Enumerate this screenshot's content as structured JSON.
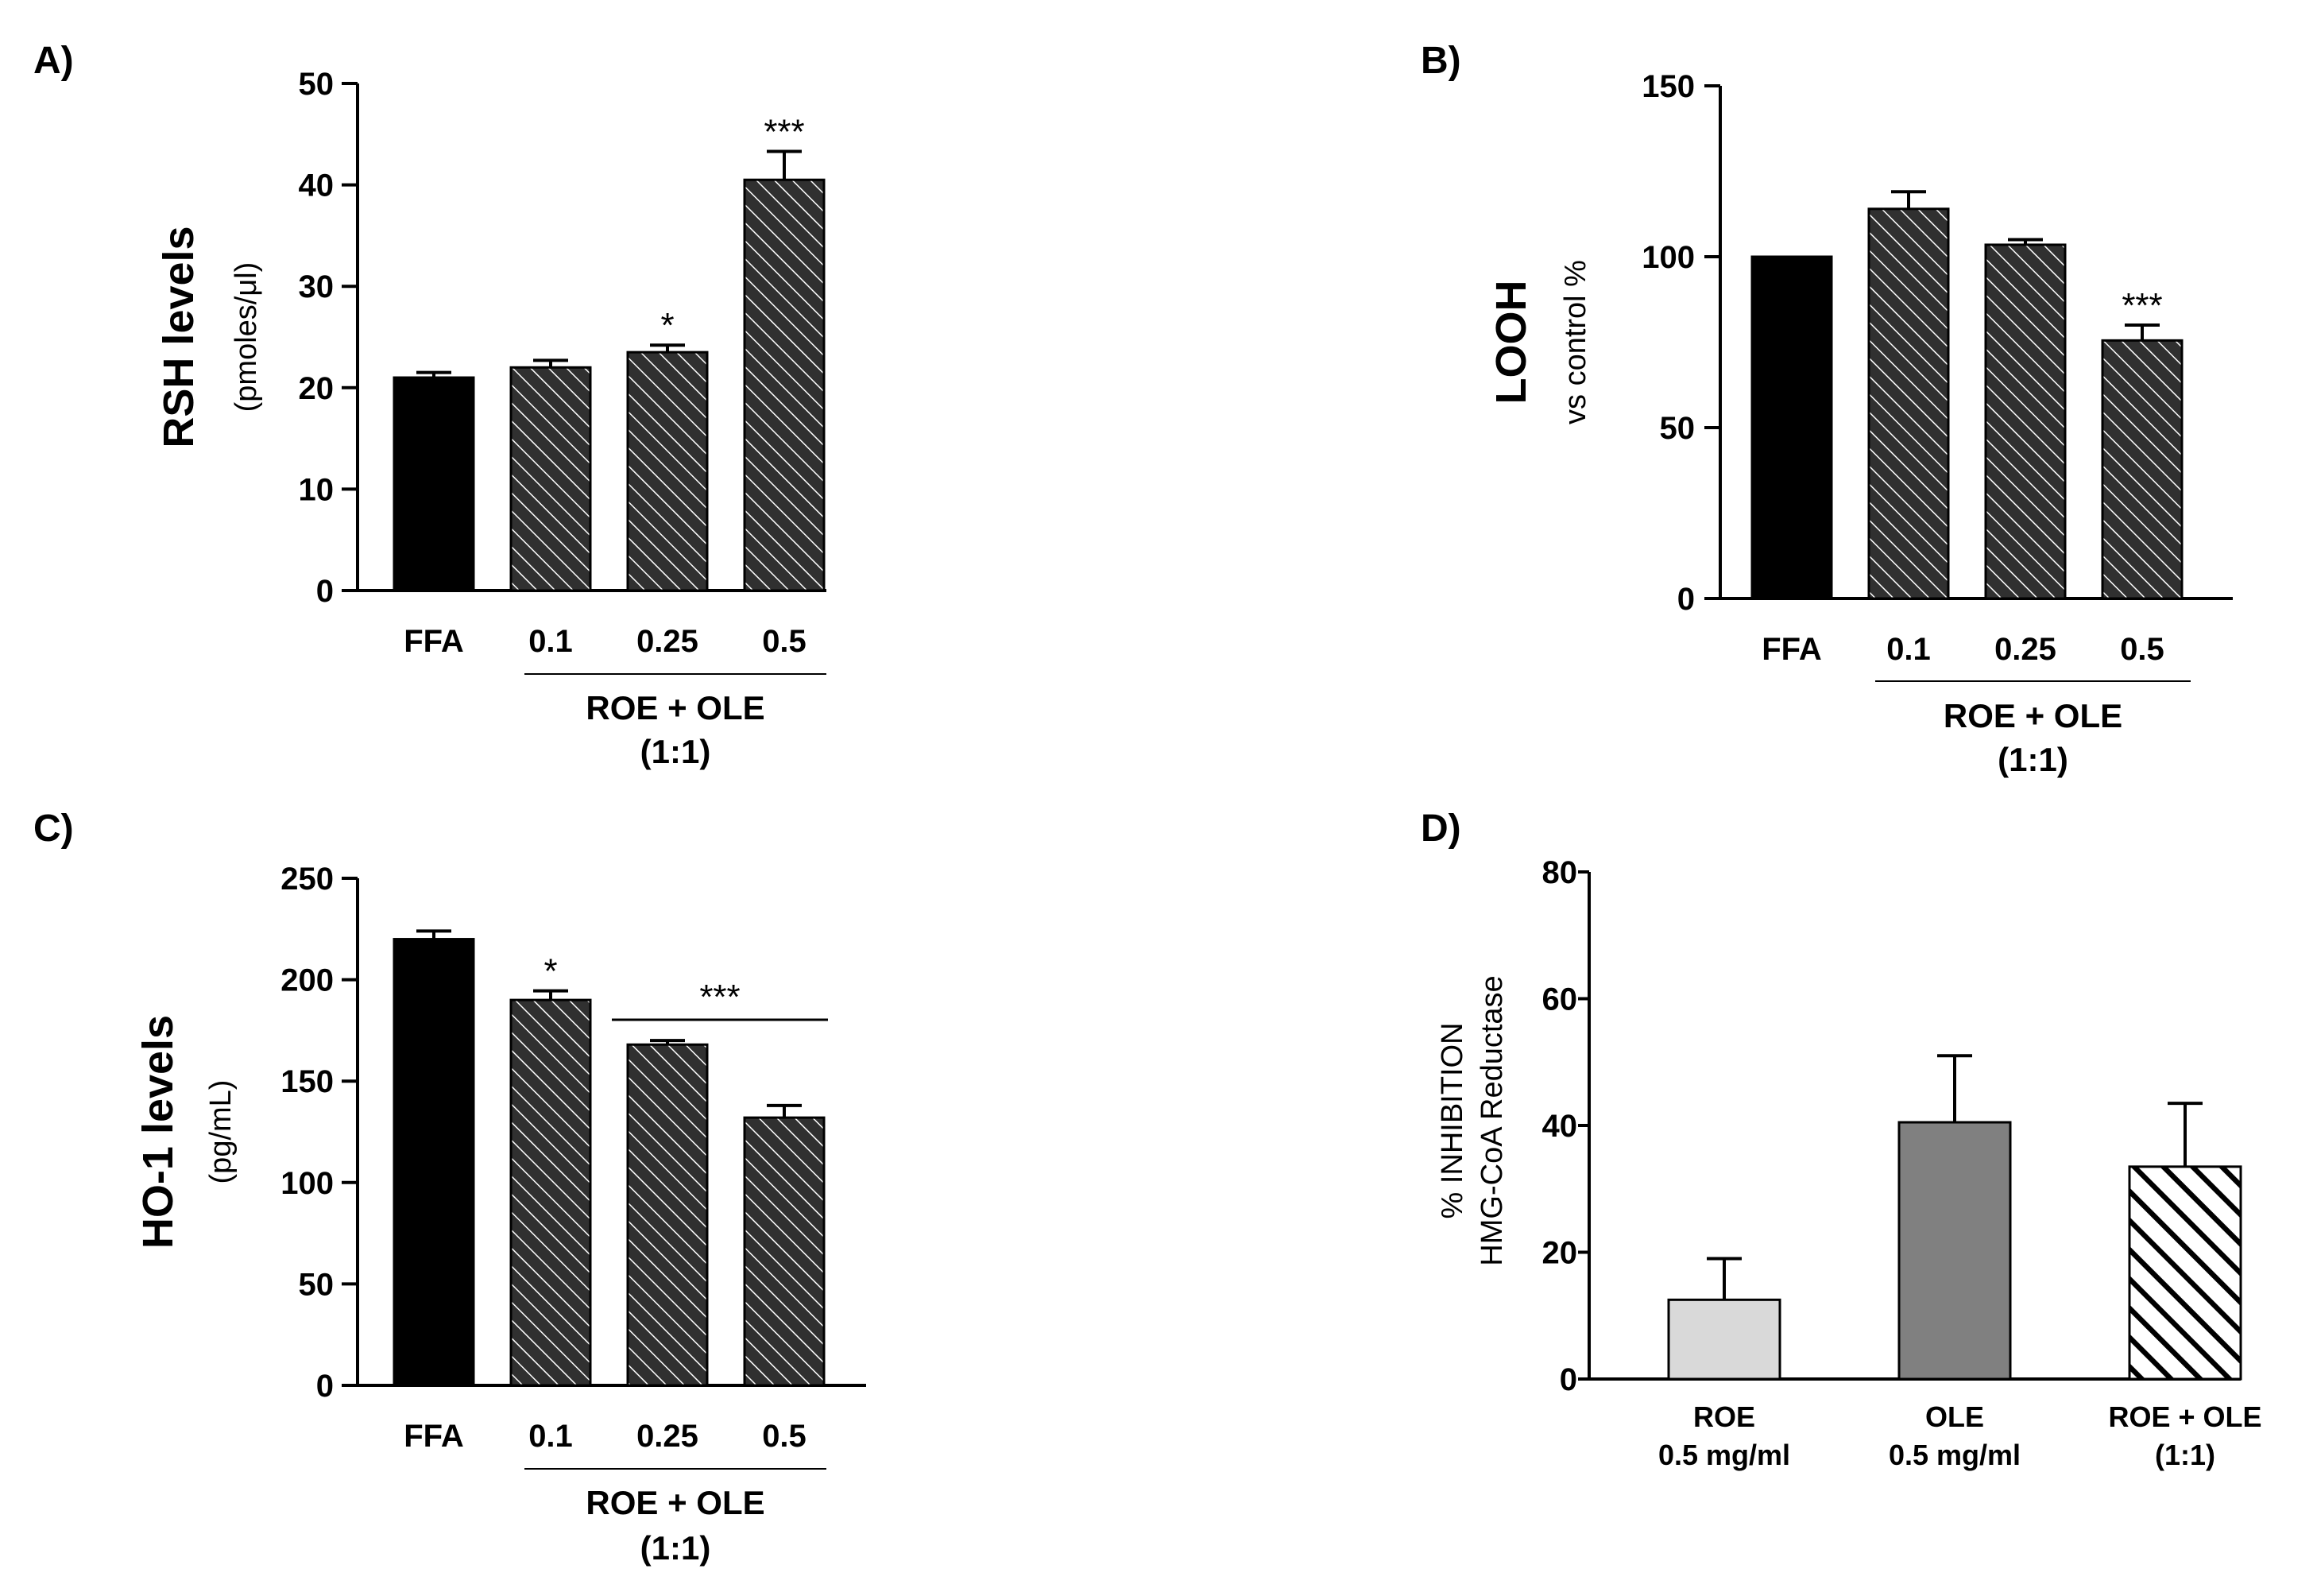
{
  "chart_data": [
    {
      "panel": "A)",
      "type": "bar",
      "categories": [
        "FFA",
        "0.1",
        "0.25",
        "0.5"
      ],
      "values": [
        21,
        22,
        23.5,
        40.5
      ],
      "errors": [
        0.5,
        0.7,
        0.7,
        2.8
      ],
      "fills": [
        "solid",
        "hatch",
        "hatch",
        "hatch"
      ],
      "significance": [
        "",
        "",
        "*",
        "***"
      ],
      "group_label": [
        "ROE + OLE",
        "(1:1)"
      ],
      "group_span": [
        1,
        3
      ],
      "ylabel": "RSH levels",
      "ylabel_sub": "(pmoles/μl)",
      "ylim": [
        0,
        50
      ],
      "yticks": [
        0,
        10,
        20,
        30,
        40,
        50
      ]
    },
    {
      "panel": "B)",
      "type": "bar",
      "categories": [
        "FFA",
        "0.1",
        "0.25",
        "0.5"
      ],
      "values": [
        100,
        114,
        103.5,
        75.5
      ],
      "errors": [
        0,
        5,
        1.5,
        4.5
      ],
      "fills": [
        "solid",
        "hatch",
        "hatch",
        "hatch"
      ],
      "significance": [
        "",
        "",
        "",
        "***"
      ],
      "group_label": [
        "ROE + OLE",
        "(1:1)"
      ],
      "group_span": [
        1,
        3
      ],
      "ylabel": "LOOH",
      "ylabel_sub": "vs control %",
      "ylim": [
        0,
        150
      ],
      "yticks": [
        0,
        50,
        100,
        150
      ]
    },
    {
      "panel": "C)",
      "type": "bar",
      "categories": [
        "FFA",
        "0.1",
        "0.25",
        "0.5"
      ],
      "values": [
        220,
        190,
        168,
        132
      ],
      "errors": [
        4,
        4.5,
        2,
        6
      ],
      "fills": [
        "solid",
        "hatch",
        "hatch",
        "hatch"
      ],
      "significance": [
        "",
        "*",
        "",
        ""
      ],
      "bracket": {
        "label": "***",
        "from": 2,
        "to": 3
      },
      "group_label": [
        "ROE + OLE",
        "(1:1)"
      ],
      "group_span": [
        1,
        3
      ],
      "ylabel": "HO-1 levels",
      "ylabel_sub": "(pg/mL)",
      "ylim": [
        0,
        250
      ],
      "yticks": [
        0,
        50,
        100,
        150,
        200,
        250
      ]
    },
    {
      "panel": "D)",
      "type": "bar",
      "categories": [
        [
          "ROE",
          "0.5 mg/ml"
        ],
        [
          "OLE",
          "0.5 mg/ml"
        ],
        [
          "ROE + OLE",
          "(1:1)"
        ]
      ],
      "values": [
        12.5,
        40.5,
        33.5
      ],
      "errors": [
        6.5,
        10.5,
        10
      ],
      "fills": [
        "#d9d9d9",
        "#808080",
        "hatch-bold"
      ],
      "ylabel": "% INHIBITION",
      "ylabel_sub": "HMG-CoA Reductase",
      "ylim": [
        0,
        80
      ],
      "yticks": [
        0,
        20,
        40,
        60,
        80
      ]
    }
  ]
}
